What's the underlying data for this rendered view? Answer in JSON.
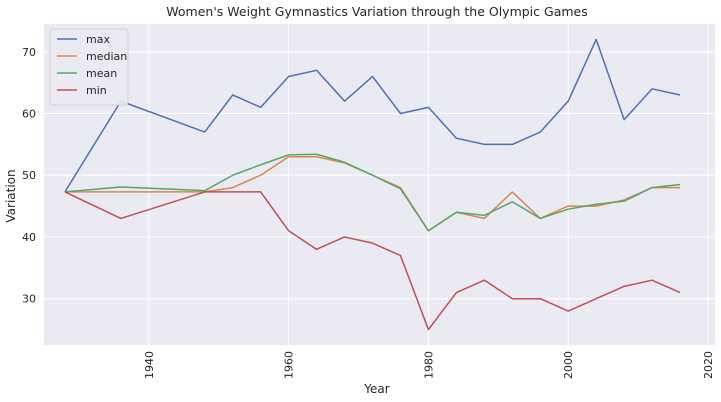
{
  "chart_data": {
    "type": "line",
    "title": "Women's Weight Gymnastics Variation through the Olympic Games",
    "xlabel": "Year",
    "ylabel": "Variation",
    "xlim": [
      1925,
      2021
    ],
    "ylim": [
      22.5,
      74.5
    ],
    "xticks": [
      1940,
      1960,
      1980,
      2000,
      2020
    ],
    "yticks": [
      30,
      40,
      50,
      60,
      70
    ],
    "grid": true,
    "legend_position": "top-left",
    "x": [
      1928,
      1936,
      1948,
      1952,
      1956,
      1960,
      1964,
      1968,
      1972,
      1976,
      1980,
      1984,
      1988,
      1992,
      1996,
      2000,
      2004,
      2008,
      2012,
      2016
    ],
    "series": [
      {
        "name": "max",
        "color": "#4c72b0",
        "values": [
          47.3,
          62,
          57,
          63,
          61,
          66,
          67,
          62,
          66,
          60,
          61,
          56,
          55,
          55,
          57,
          62,
          72,
          59,
          64,
          63
        ]
      },
      {
        "name": "median",
        "color": "#dd8452",
        "values": [
          47.3,
          47.3,
          47.3,
          48,
          50,
          53,
          53,
          52,
          50,
          48,
          41,
          44,
          43,
          47.3,
          43,
          45,
          45,
          46,
          48,
          48
        ]
      },
      {
        "name": "mean",
        "color": "#55a868",
        "values": [
          47.3,
          48.1,
          47.5,
          50,
          51.7,
          53.3,
          53.4,
          52.1,
          50,
          47.8,
          41,
          44,
          43.5,
          45.7,
          43,
          44.5,
          45.3,
          45.8,
          48,
          48.5
        ]
      },
      {
        "name": "min",
        "color": "#c44e52",
        "values": [
          47.3,
          43,
          47.3,
          47.3,
          47.3,
          41,
          38,
          40,
          39,
          37,
          25,
          31,
          33,
          30,
          30,
          28,
          30,
          32,
          33,
          31
        ]
      }
    ]
  }
}
